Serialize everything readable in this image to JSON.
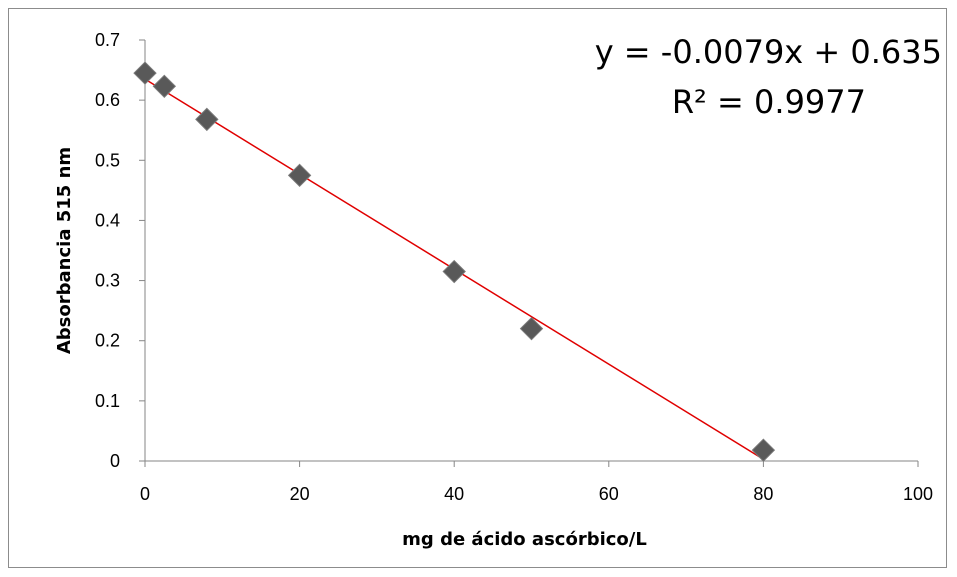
{
  "chart_data": {
    "type": "scatter",
    "xlabel": "mg de ácido ascórbico/L",
    "ylabel": "Absorbancia 515 nm",
    "xlim": [
      0,
      100
    ],
    "ylim": [
      0,
      0.7
    ],
    "x_ticks": [
      "0",
      "20",
      "40",
      "60",
      "80",
      "100"
    ],
    "y_ticks": [
      "0",
      "0.1",
      "0.2",
      "0.3",
      "0.4",
      "0.5",
      "0.6",
      "0.7"
    ],
    "series": [
      {
        "points": [
          {
            "x": 0,
            "y": 0.645
          },
          {
            "x": 2.5,
            "y": 0.623
          },
          {
            "x": 8,
            "y": 0.568
          },
          {
            "x": 20,
            "y": 0.475
          },
          {
            "x": 40,
            "y": 0.315
          },
          {
            "x": 50,
            "y": 0.22
          },
          {
            "x": 80,
            "y": 0.018
          }
        ],
        "marker_color": "#595959"
      }
    ],
    "trendline": {
      "slope": -0.0079,
      "intercept": 0.635,
      "x_range": [
        0,
        80
      ],
      "color": "#e00000"
    },
    "equation_text": "y = -0.0079x + 0.635",
    "r2_text": "R² = 0.9977",
    "grid": false
  }
}
